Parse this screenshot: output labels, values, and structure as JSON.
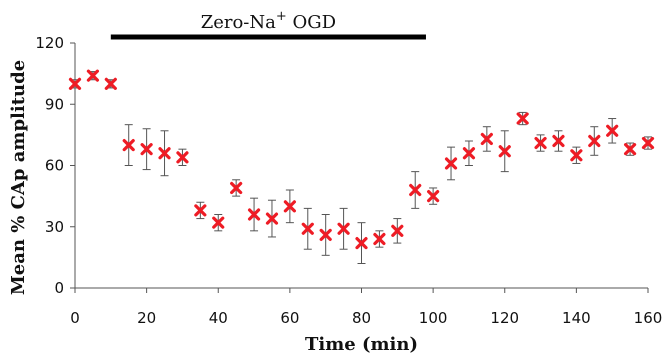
{
  "chart_data": {
    "type": "scatter",
    "title": "",
    "xlabel": "Time (min)",
    "ylabel": "Mean % CAp amplitude",
    "xlim": [
      0,
      160
    ],
    "ylim": [
      0,
      120
    ],
    "xticks": [
      0,
      20,
      40,
      60,
      80,
      100,
      120,
      140,
      160
    ],
    "yticks": [
      0,
      30,
      60,
      90,
      120
    ],
    "grid": false,
    "marker_color": "#ee1c25",
    "errorbar_color": "#555555",
    "annotation": {
      "text": "Zero-Na",
      "sup": "+",
      "text_after": " OGD",
      "x_start": 10,
      "x_end": 98
    },
    "series": [
      {
        "x": [
          0,
          5,
          10,
          15,
          20,
          25,
          30,
          35,
          40,
          45,
          50,
          55,
          60,
          65,
          70,
          75,
          80,
          85,
          90,
          95,
          100,
          105,
          110,
          115,
          120,
          125,
          130,
          135,
          140,
          145,
          150,
          155,
          160
        ],
        "y": [
          100,
          104,
          100,
          70,
          68,
          66,
          64,
          38,
          32,
          49,
          36,
          34,
          40,
          29,
          26,
          29,
          22,
          24,
          28,
          48,
          45,
          61,
          66,
          73,
          67,
          83,
          71,
          72,
          65,
          72,
          77,
          68,
          71
        ],
        "err": [
          2,
          2,
          2,
          10,
          10,
          11,
          4,
          4,
          4,
          4,
          8,
          9,
          8,
          10,
          10,
          10,
          10,
          4,
          6,
          9,
          4,
          8,
          6,
          6,
          10,
          3,
          4,
          5,
          4,
          7,
          6,
          3,
          3
        ]
      }
    ]
  }
}
